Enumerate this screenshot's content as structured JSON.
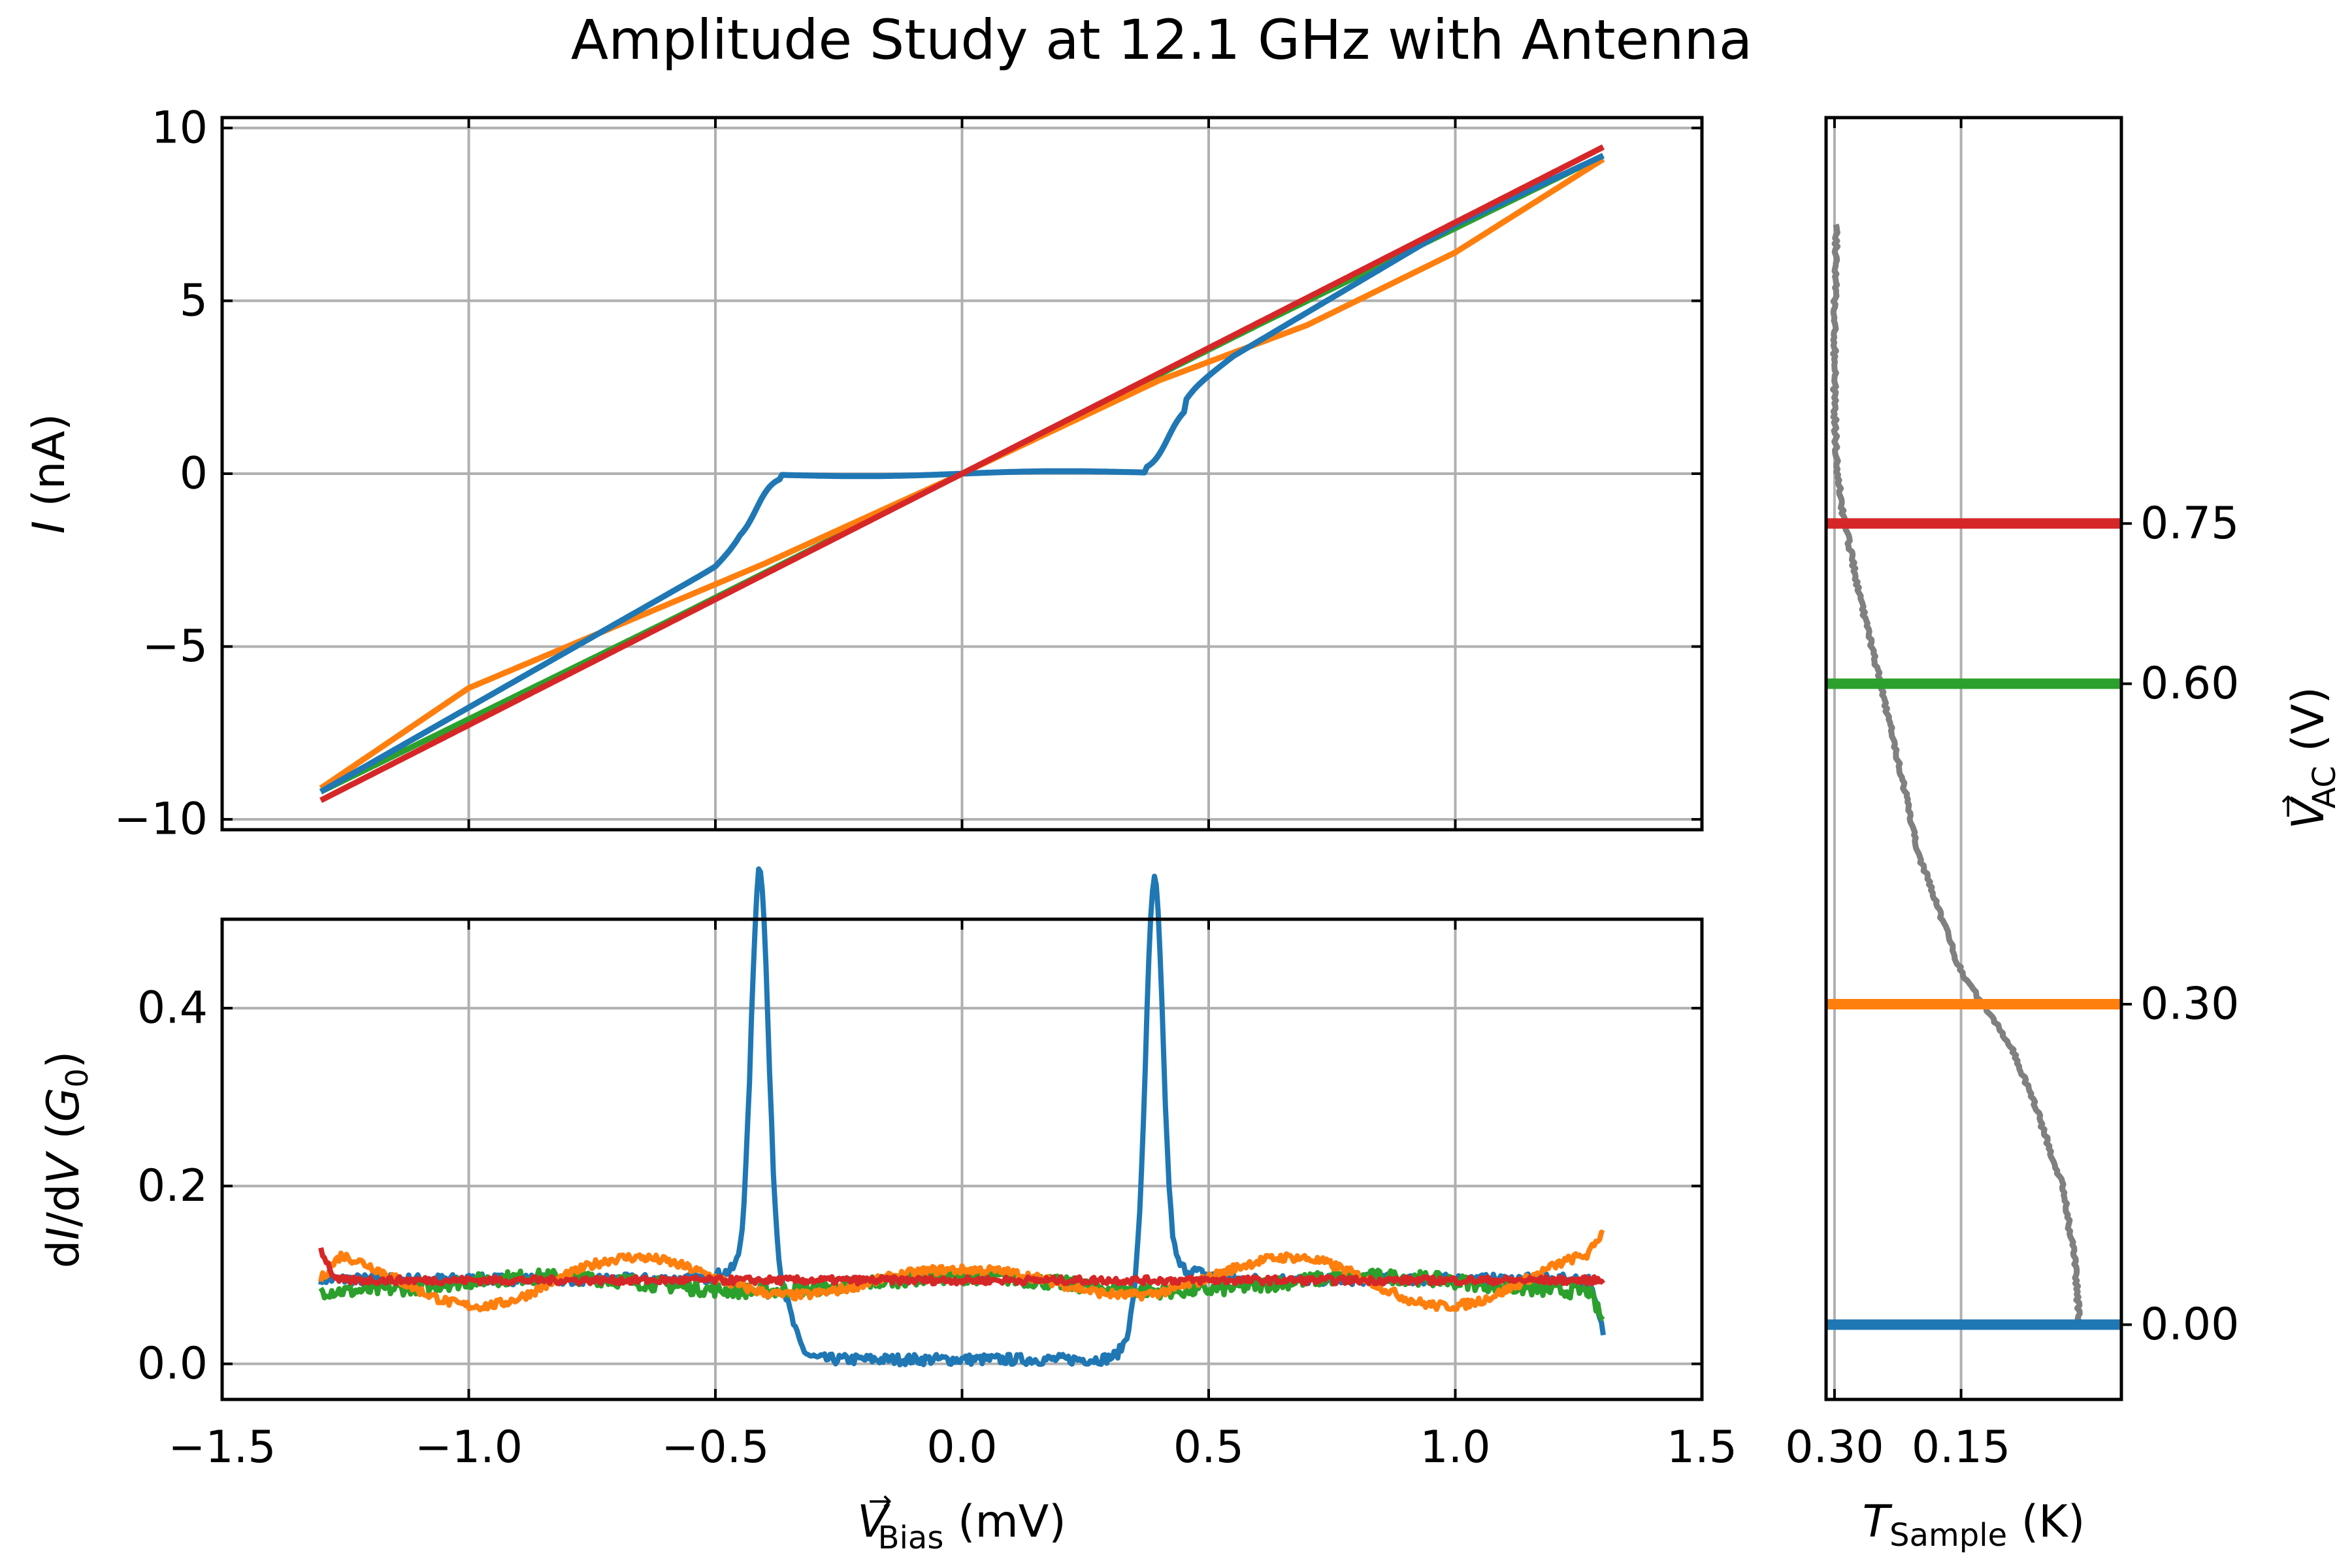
{
  "title": "Amplitude Study at 12.1 GHz with Antenna",
  "colors": {
    "c0": "#1f77b4",
    "c1": "#ff7f0e",
    "c2": "#2ca02c",
    "c3": "#d62728",
    "temp": "#808080",
    "grid": "#b0b0b0"
  },
  "axes": {
    "top": {
      "ylabel_italic": "I",
      "ylabel_rest": " (nA)",
      "xticks": [
        "−1.5",
        "−1.0",
        "−0.5",
        "0.0",
        "0.5",
        "1.0",
        "1.5"
      ],
      "yticks": [
        "−10",
        "−5",
        "0",
        "5",
        "10"
      ]
    },
    "bottom": {
      "ylabel_parts": [
        "d",
        "I",
        "/d",
        "V",
        " (",
        "G",
        "0",
        ")"
      ],
      "xticks": [
        "−1.5",
        "−1.0",
        "−0.5",
        "0.0",
        "0.5",
        "1.0",
        "1.5"
      ],
      "yticks": [
        "0.0",
        "0.2",
        "0.4"
      ],
      "xlabel_main": "V",
      "xlabel_arrow": "→",
      "xlabel_sub": "Bias",
      "xlabel_unit": " (mV)"
    },
    "right": {
      "xticks": [
        "0.30",
        "0.15"
      ],
      "yticks": [
        "0.00",
        "0.30",
        "0.60",
        "0.75"
      ],
      "xlabel_main": "T",
      "xlabel_sub": "Sample",
      "xlabel_unit": " (K)",
      "ylabel_main": "V",
      "ylabel_arrow": "→",
      "ylabel_sub": "AC",
      "ylabel_unit": " (V)"
    }
  },
  "chart_data": [
    {
      "type": "line",
      "panel": "I-V",
      "xlim": [
        -1.5,
        1.5
      ],
      "ylim": [
        -10.3,
        10.3
      ],
      "grid": true,
      "x_range_of_data": [
        -1.3,
        1.3
      ],
      "series": [
        {
          "color": "#1f77b4",
          "V_AC": 0.0,
          "description_points": [
            [
              -1.3,
              -9.2
            ],
            [
              -0.5,
              -2.7
            ],
            [
              -0.45,
              -2.0
            ],
            [
              -0.38,
              -0.2
            ],
            [
              -0.3,
              -0.05
            ],
            [
              0.0,
              0.0
            ],
            [
              0.3,
              0.05
            ],
            [
              0.38,
              0.2
            ],
            [
              0.45,
              2.3
            ],
            [
              0.55,
              3.4
            ],
            [
              1.0,
              7.2
            ],
            [
              1.3,
              9.2
            ]
          ]
        },
        {
          "color": "#ff7f0e",
          "V_AC": 0.3,
          "description_points": [
            [
              -1.3,
              -9.1
            ],
            [
              -1.0,
              -6.2
            ],
            [
              -0.7,
              -4.4
            ],
            [
              -0.4,
              -2.6
            ],
            [
              0.0,
              0.0
            ],
            [
              0.4,
              2.7
            ],
            [
              0.7,
              4.3
            ],
            [
              1.0,
              6.4
            ],
            [
              1.3,
              9.1
            ]
          ]
        },
        {
          "color": "#2ca02c",
          "V_AC": 0.6,
          "description_points": [
            [
              -1.3,
              -9.2
            ],
            [
              -0.6,
              -4.3
            ],
            [
              0.0,
              0.0
            ],
            [
              0.6,
              4.3
            ],
            [
              1.3,
              9.2
            ]
          ]
        },
        {
          "color": "#d62728",
          "V_AC": 0.75,
          "description_points": [
            [
              -1.3,
              -9.45
            ],
            [
              0.0,
              0.0
            ],
            [
              1.3,
              9.45
            ]
          ]
        }
      ]
    },
    {
      "type": "line",
      "panel": "dI/dV",
      "xlim": [
        -1.5,
        1.5
      ],
      "ylim": [
        -0.04,
        0.5
      ],
      "grid": true,
      "series": [
        {
          "color": "#1f77b4",
          "V_AC": 0.0,
          "baseline_outside": 0.095,
          "baseline_inside": 0.005,
          "peaks": [
            {
              "x": -0.41,
              "y": 0.475
            },
            {
              "x": 0.39,
              "y": 0.465
            }
          ],
          "end_values": [
            0.09,
            0.035
          ]
        },
        {
          "color": "#ff7f0e",
          "V_AC": 0.3,
          "baseline": 0.095,
          "oscillation_amplitude": 0.03,
          "end_values": [
            0.065,
            0.12
          ]
        },
        {
          "color": "#2ca02c",
          "V_AC": 0.6,
          "baseline": 0.09,
          "oscillation_amplitude": 0.008,
          "end_values": [
            0.09,
            0.06
          ]
        },
        {
          "color": "#d62728",
          "V_AC": 0.75,
          "baseline": 0.094,
          "oscillation_amplitude": 0.003,
          "end_values": [
            0.13,
            0.09
          ]
        }
      ]
    },
    {
      "type": "line",
      "panel": "temperature vs V_AC",
      "xlim": [
        0.31,
        -0.04
      ],
      "ylim": [
        -0.07,
        1.13
      ],
      "grid": true,
      "hlines": [
        {
          "y": 0.0,
          "color": "#1f77b4"
        },
        {
          "y": 0.3,
          "color": "#ff7f0e"
        },
        {
          "y": 0.6,
          "color": "#2ca02c"
        },
        {
          "y": 0.75,
          "color": "#d62728"
        }
      ],
      "temperature_curve": {
        "color": "#808080",
        "points": [
          [
            0.01,
            0.0
          ],
          [
            0.012,
            0.03
          ],
          [
            0.015,
            0.06
          ],
          [
            0.03,
            0.13
          ],
          [
            0.06,
            0.2
          ],
          [
            0.09,
            0.26
          ],
          [
            0.15,
            0.33
          ],
          [
            0.2,
            0.44
          ],
          [
            0.245,
            0.6
          ],
          [
            0.27,
            0.68
          ],
          [
            0.29,
            0.76
          ],
          [
            0.298,
            0.81
          ],
          [
            0.3,
            0.86
          ],
          [
            0.3,
            0.95
          ],
          [
            0.298,
            1.0
          ],
          [
            0.298,
            1.03
          ]
        ]
      }
    }
  ]
}
